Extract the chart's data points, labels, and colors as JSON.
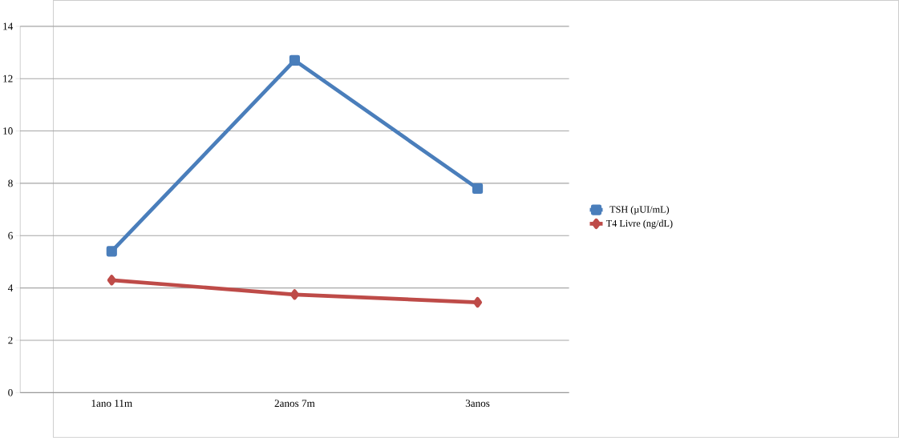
{
  "chart_data": {
    "type": "line",
    "categories": [
      "1ano 11m",
      "2anos 7m",
      "3anos"
    ],
    "series": [
      {
        "name": "TSH (µUI/mL)",
        "color": "#4a7ebb",
        "marker": "square",
        "values": [
          5.4,
          12.7,
          7.8
        ]
      },
      {
        "name": "T4 Livre (ng/dL)",
        "color": "#be4b48",
        "marker": "diamond",
        "values": [
          4.3,
          3.75,
          3.45
        ]
      }
    ],
    "ylim": [
      0,
      14
    ],
    "yticks": [
      0,
      2,
      4,
      6,
      8,
      10,
      12,
      14
    ],
    "grid": "y",
    "legend": "right"
  }
}
